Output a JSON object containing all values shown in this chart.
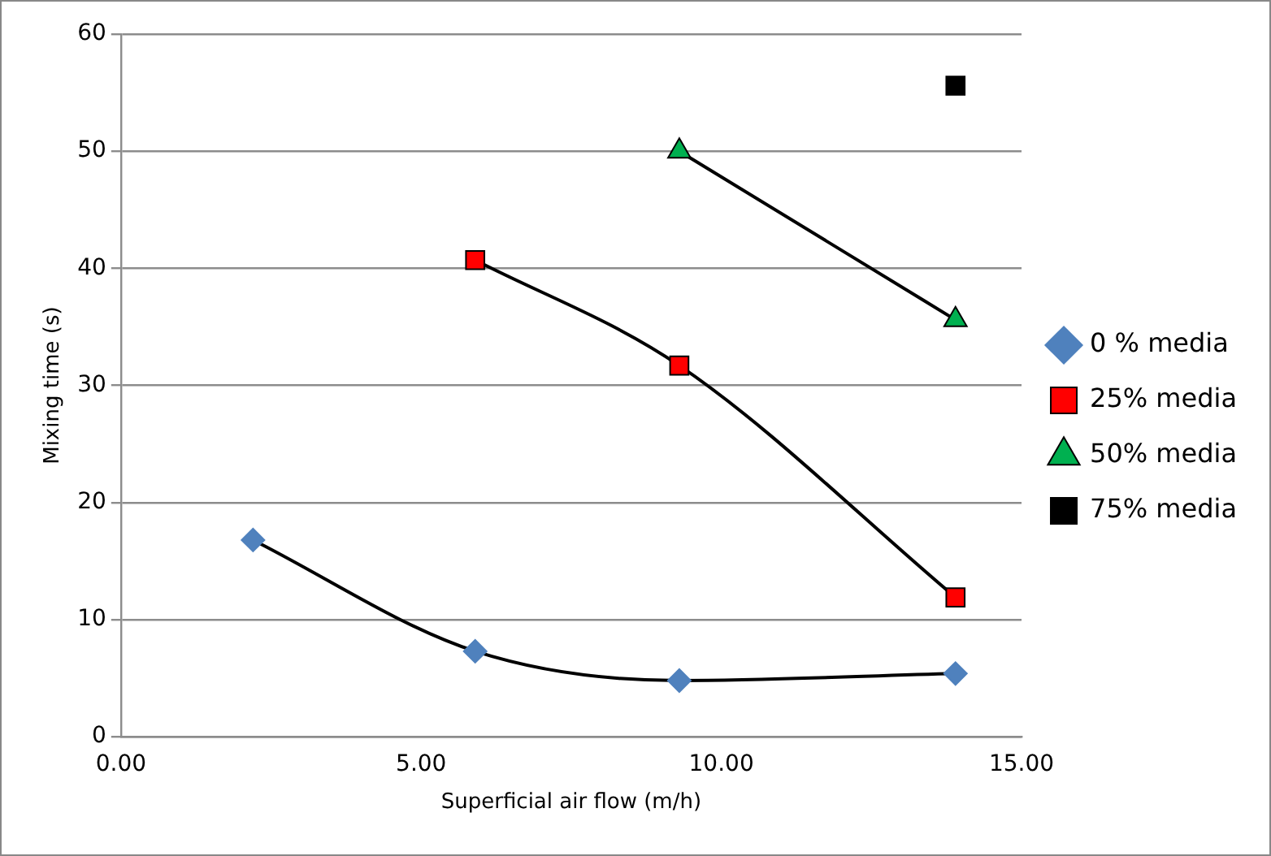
{
  "chart_data": {
    "type": "line",
    "xlabel": "Superficial air flow (m/h)",
    "ylabel": "Mixing time (s)",
    "xlim": [
      0,
      15
    ],
    "xticks": [
      {
        "value": 0,
        "label": "0.00"
      },
      {
        "value": 5,
        "label": "5.00"
      },
      {
        "value": 10,
        "label": "10.00"
      },
      {
        "value": 15,
        "label": "15.00"
      }
    ],
    "ylim": [
      0,
      60
    ],
    "yticks": [
      0,
      10,
      20,
      30,
      40,
      50,
      60
    ],
    "grid": "y",
    "legend": "right",
    "series": [
      {
        "name": "0 % media",
        "color": "#4f81bd",
        "marker": "diamond",
        "x": [
          2.2,
          5.9,
          9.3,
          13.9
        ],
        "values": [
          16.8,
          7.3,
          4.8,
          5.4
        ]
      },
      {
        "name": "25% media",
        "color": "#ff0000",
        "marker": "square",
        "x": [
          5.9,
          9.3,
          13.9
        ],
        "values": [
          40.7,
          31.7,
          11.9
        ]
      },
      {
        "name": "50% media",
        "color": "#00b050",
        "marker": "triangle",
        "x": [
          9.3,
          13.9
        ],
        "values": [
          50,
          35.6
        ]
      },
      {
        "name": "75% media",
        "color": "#000000",
        "marker": "square",
        "x": [
          13.9
        ],
        "values": [
          55.6
        ]
      }
    ]
  }
}
